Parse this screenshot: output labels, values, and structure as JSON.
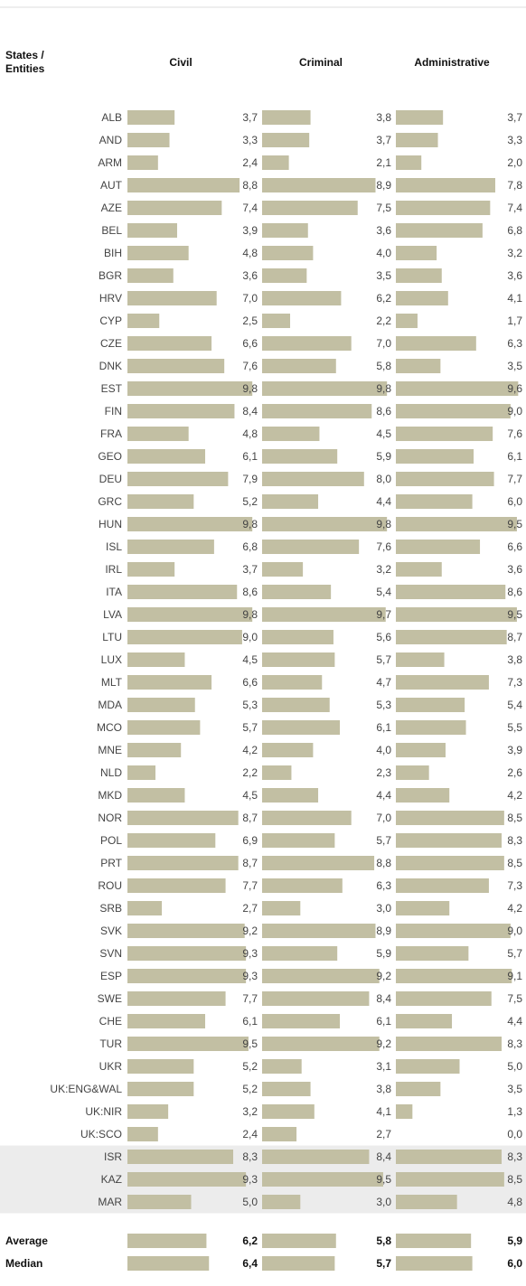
{
  "chart_data": {
    "type": "bar",
    "orientation": "horizontal",
    "header": "States / Entities",
    "categories": [
      "ALB",
      "AND",
      "ARM",
      "AUT",
      "AZE",
      "BEL",
      "BIH",
      "BGR",
      "HRV",
      "CYP",
      "CZE",
      "DNK",
      "EST",
      "FIN",
      "FRA",
      "GEO",
      "DEU",
      "GRC",
      "HUN",
      "ISL",
      "IRL",
      "ITA",
      "LVA",
      "LTU",
      "LUX",
      "MLT",
      "MDA",
      "MCO",
      "MNE",
      "NLD",
      "MKD",
      "NOR",
      "POL",
      "PRT",
      "ROU",
      "SRB",
      "SVK",
      "SVN",
      "ESP",
      "SWE",
      "CHE",
      "TUR",
      "UKR",
      "UK:ENG&WAL",
      "UK:NIR",
      "UK:SCO",
      "ISR",
      "KAZ",
      "MAR"
    ],
    "highlight_rows": [
      46,
      47,
      48
    ],
    "xlim": [
      0,
      10
    ],
    "series": [
      {
        "name": "Civil",
        "color": "#c2bfa3",
        "values": [
          3.7,
          3.3,
          2.4,
          8.8,
          7.4,
          3.9,
          4.8,
          3.6,
          7.0,
          2.5,
          6.6,
          7.6,
          9.8,
          8.4,
          4.8,
          6.1,
          7.9,
          5.2,
          9.8,
          6.8,
          3.7,
          8.6,
          9.8,
          9.0,
          4.5,
          6.6,
          5.3,
          5.7,
          4.2,
          2.2,
          4.5,
          8.7,
          6.9,
          8.7,
          7.7,
          2.7,
          9.2,
          9.3,
          9.3,
          7.7,
          6.1,
          9.5,
          5.2,
          5.2,
          3.2,
          2.4,
          8.3,
          9.3,
          5.0
        ],
        "value_labels": [
          "3,7",
          "3,3",
          "2,4",
          "8,8",
          "7,4",
          "3,9",
          "4,8",
          "3,6",
          "7,0",
          "2,5",
          "6,6",
          "7,6",
          "9,8",
          "8,4",
          "4,8",
          "6,1",
          "7,9",
          "5,2",
          "9,8",
          "6,8",
          "3,7",
          "8,6",
          "9,8",
          "9,0",
          "4,5",
          "6,6",
          "5,3",
          "5,7",
          "4,2",
          "2,2",
          "4,5",
          "8,7",
          "6,9",
          "8,7",
          "7,7",
          "2,7",
          "9,2",
          "9,3",
          "9,3",
          "7,7",
          "6,1",
          "9,5",
          "5,2",
          "5,2",
          "3,2",
          "2,4",
          "8,3",
          "9,3",
          "5,0"
        ],
        "summary_values": [
          6.2,
          6.4
        ],
        "summary_value_labels": [
          "6,2",
          "6,4"
        ]
      },
      {
        "name": "Criminal",
        "color": "#c2bfa3",
        "values": [
          3.8,
          3.7,
          2.1,
          8.9,
          7.5,
          3.6,
          4.0,
          3.5,
          6.2,
          2.2,
          7.0,
          5.8,
          9.8,
          8.6,
          4.5,
          5.9,
          8.0,
          4.4,
          9.8,
          7.6,
          3.2,
          5.4,
          9.7,
          5.6,
          5.7,
          4.7,
          5.3,
          6.1,
          4.0,
          2.3,
          4.4,
          7.0,
          5.7,
          8.8,
          6.3,
          3.0,
          8.9,
          5.9,
          9.2,
          8.4,
          6.1,
          9.2,
          3.1,
          3.8,
          4.1,
          2.7,
          8.4,
          9.5,
          3.0
        ],
        "value_labels": [
          "3,8",
          "3,7",
          "2,1",
          "8,9",
          "7,5",
          "3,6",
          "4,0",
          "3,5",
          "6,2",
          "2,2",
          "7,0",
          "5,8",
          "9,8",
          "8,6",
          "4,5",
          "5,9",
          "8,0",
          "4,4",
          "9,8",
          "7,6",
          "3,2",
          "5,4",
          "9,7",
          "5,6",
          "5,7",
          "4,7",
          "5,3",
          "6,1",
          "4,0",
          "2,3",
          "4,4",
          "7,0",
          "5,7",
          "8,8",
          "6,3",
          "3,0",
          "8,9",
          "5,9",
          "9,2",
          "8,4",
          "6,1",
          "9,2",
          "3,1",
          "3,8",
          "4,1",
          "2,7",
          "8,4",
          "9,5",
          "3,0"
        ],
        "summary_values": [
          5.8,
          5.7
        ],
        "summary_value_labels": [
          "5,8",
          "5,7"
        ]
      },
      {
        "name": "Administrative",
        "color": "#c2bfa3",
        "values": [
          3.7,
          3.3,
          2.0,
          7.8,
          7.4,
          6.8,
          3.2,
          3.6,
          4.1,
          1.7,
          6.3,
          3.5,
          9.6,
          9.0,
          7.6,
          6.1,
          7.7,
          6.0,
          9.5,
          6.6,
          3.6,
          8.6,
          9.5,
          8.7,
          3.8,
          7.3,
          5.4,
          5.5,
          3.9,
          2.6,
          4.2,
          8.5,
          8.3,
          8.5,
          7.3,
          4.2,
          9.0,
          5.7,
          9.1,
          7.5,
          4.4,
          8.3,
          5.0,
          3.5,
          1.3,
          0.0,
          8.3,
          8.5,
          4.8
        ],
        "value_labels": [
          "3,7",
          "3,3",
          "2,0",
          "7,8",
          "7,4",
          "6,8",
          "3,2",
          "3,6",
          "4,1",
          "1,7",
          "6,3",
          "3,5",
          "9,6",
          "9,0",
          "7,6",
          "6,1",
          "7,7",
          "6,0",
          "9,5",
          "6,6",
          "3,6",
          "8,6",
          "9,5",
          "8,7",
          "3,8",
          "7,3",
          "5,4",
          "5,5",
          "3,9",
          "2,6",
          "4,2",
          "8,5",
          "8,3",
          "8,5",
          "7,3",
          "4,2",
          "9,0",
          "5,7",
          "9,1",
          "7,5",
          "4,4",
          "8,3",
          "5,0",
          "3,5",
          "1,3",
          "0,0",
          "8,3",
          "8,5",
          "4,8"
        ],
        "summary_values": [
          5.9,
          6.0
        ],
        "summary_value_labels": [
          "5,9",
          "6,0"
        ]
      }
    ],
    "summary_categories": [
      "Average",
      "Median"
    ]
  }
}
